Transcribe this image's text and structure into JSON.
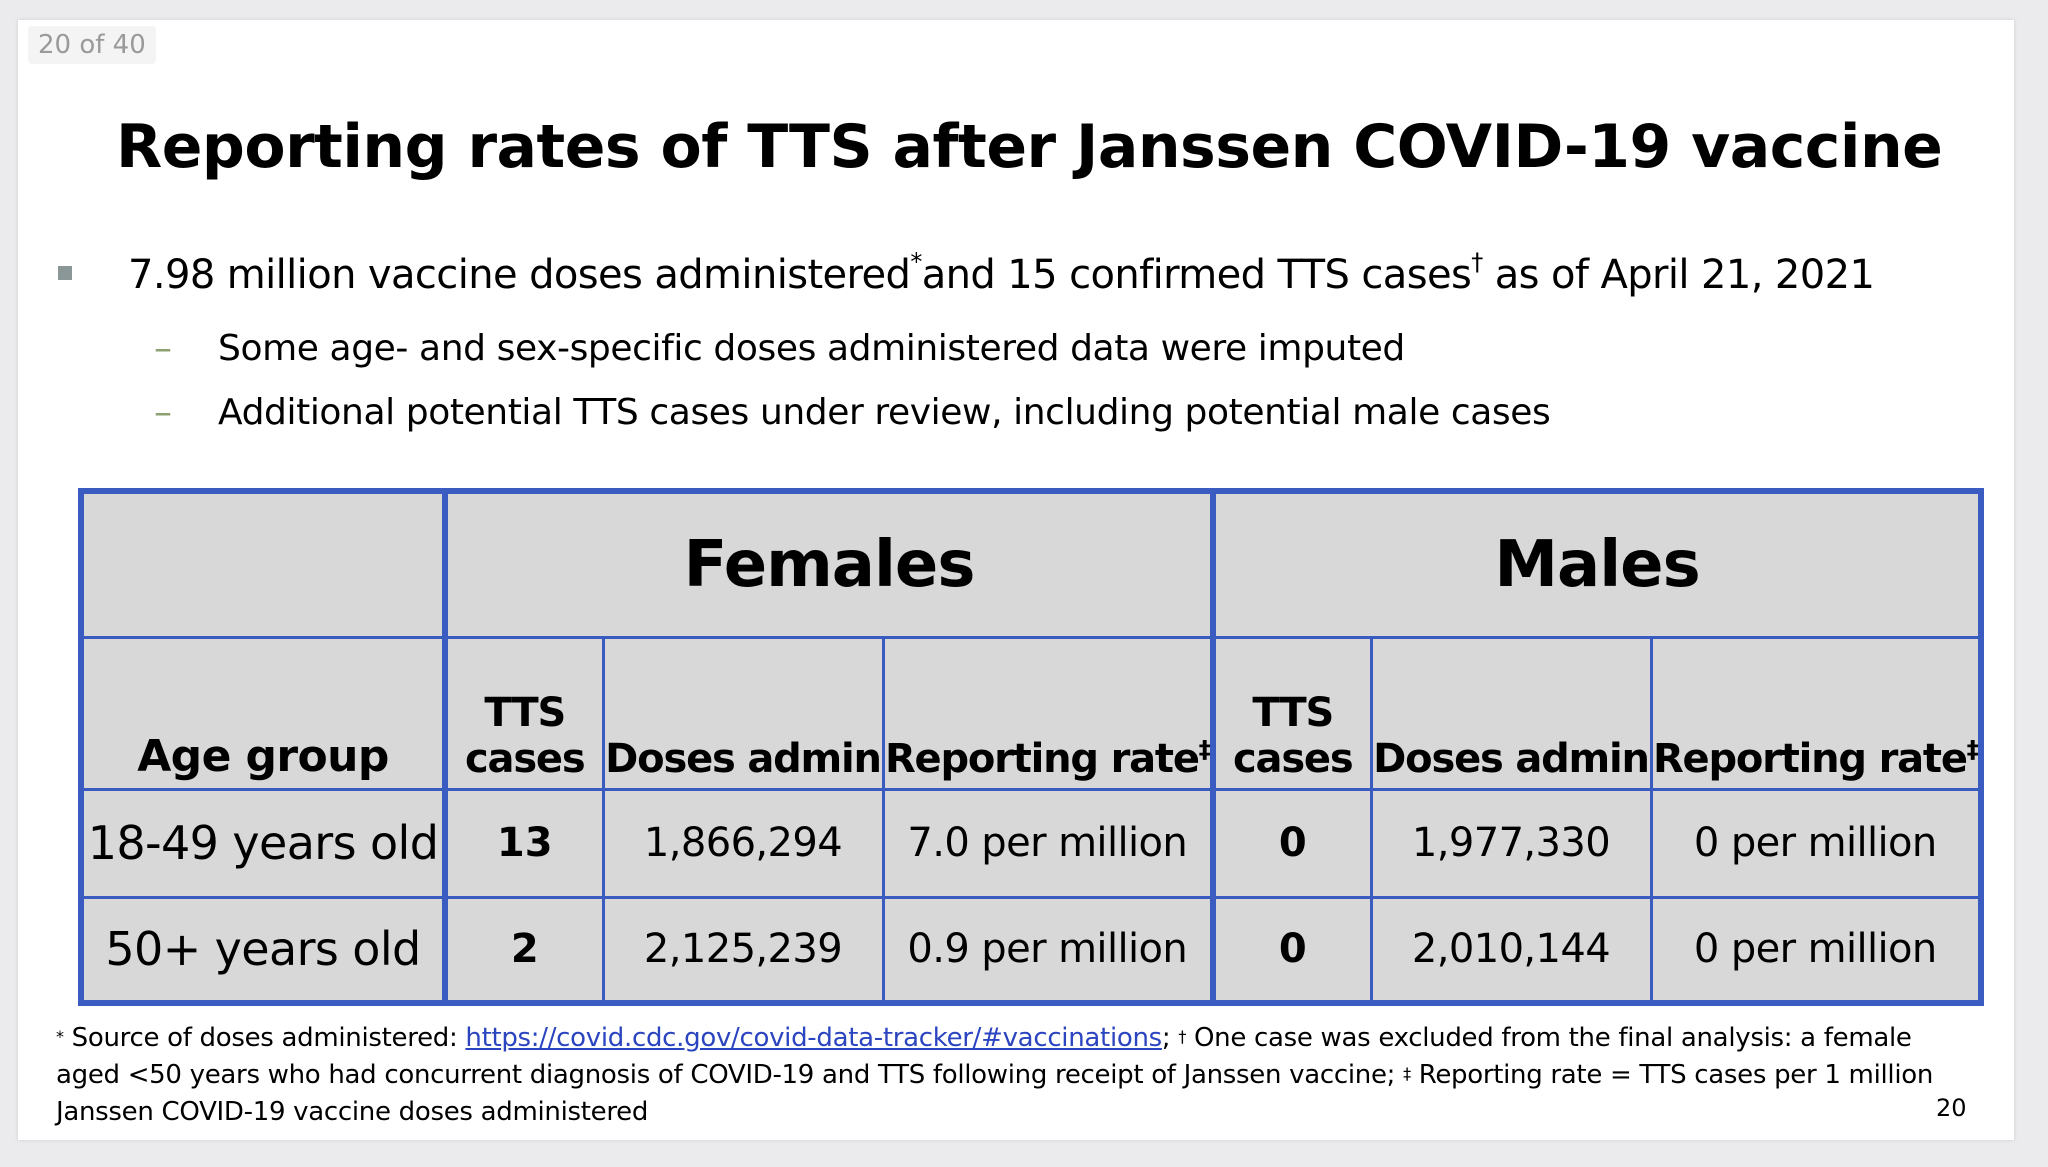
{
  "viewer": {
    "page_indicator": "20 of 40"
  },
  "slide": {
    "title": "Reporting rates of TTS after Janssen COVID-19 vaccine",
    "bullet": {
      "part1": "7.98 million vaccine doses administered",
      "mark1": "*",
      "part2": "and 15 confirmed TTS cases",
      "mark2": "†",
      "part3": " as of April 21, 2021"
    },
    "sub_bullets": [
      "Some age- and sex-specific doses administered data were imputed",
      "Additional potential TTS cases under review, including potential male cases"
    ],
    "table": {
      "group_headers": {
        "females": "Females",
        "males": "Males"
      },
      "age_header": "Age group",
      "columns": {
        "tts_line1": "TTS",
        "tts_line2": "cases",
        "doses": "Doses admin",
        "rate": "Reporting rate",
        "rate_mark": "‡"
      },
      "rows": [
        {
          "age": "18-49 years old",
          "f_tts": "13",
          "f_doses": "1,866,294",
          "f_rate": "7.0 per million",
          "m_tts": "0",
          "m_doses": "1,977,330",
          "m_rate": "0 per million"
        },
        {
          "age": "50+ years old",
          "f_tts": "2",
          "f_doses": "2,125,239",
          "f_rate": "0.9 per million",
          "m_tts": "0",
          "m_doses": "2,010,144",
          "m_rate": "0 per million"
        }
      ]
    },
    "footnote": {
      "mark1": "*",
      "text1": " Source of doses administered: ",
      "link": "https://covid.cdc.gov/covid-data-tracker/#vaccinations",
      "text2": "; ",
      "mark2": "†",
      "text3": " One case was excluded from the final analysis: a female aged <50 years who had concurrent diagnosis of COVID-19 and TTS following receipt of Janssen vaccine; ",
      "mark3": "‡",
      "text4": " Reporting rate = TTS cases per 1 million Janssen COVID-19 vaccine doses administered"
    },
    "slide_number": "20"
  }
}
